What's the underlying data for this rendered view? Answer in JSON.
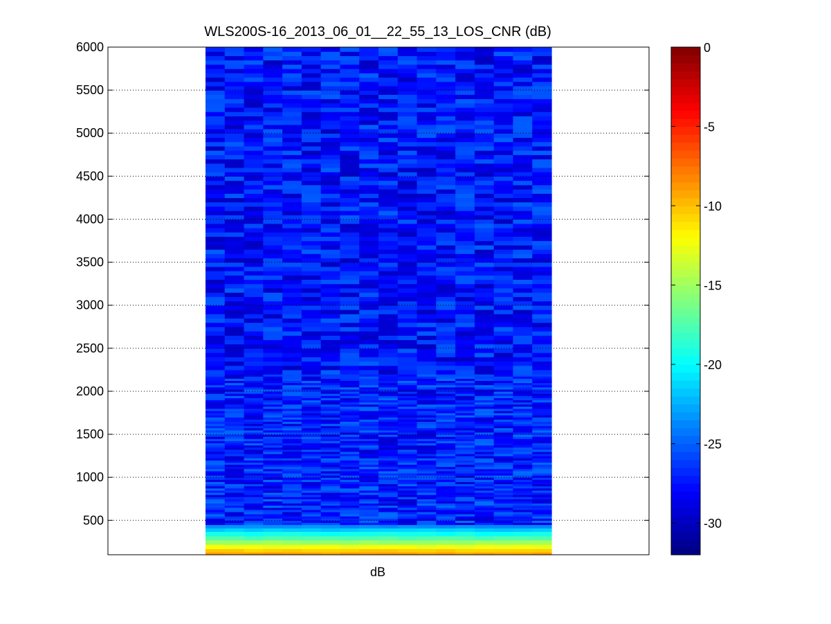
{
  "chart_data": {
    "type": "heatmap",
    "title": "WLS200S-16_2013_06_01__22_55_13_LOS_CNR (dB)",
    "xlabel": "dB",
    "ylabel": "",
    "ylim": [
      100,
      6000
    ],
    "yticks": [
      500,
      1000,
      1500,
      2000,
      2500,
      3000,
      3500,
      4000,
      4500,
      5000,
      5500,
      6000
    ],
    "grid": "y-dotted",
    "colormap": "jet",
    "colorbar": {
      "range": [
        -32,
        0
      ],
      "ticks": [
        0,
        -5,
        -10,
        -15,
        -20,
        -25,
        -30
      ]
    },
    "columns": 18,
    "bands": [
      {
        "y_from": 100,
        "y_to": 130,
        "value": -9
      },
      {
        "y_from": 130,
        "y_to": 170,
        "value": -10.5
      },
      {
        "y_from": 170,
        "y_to": 220,
        "value": -12.5
      },
      {
        "y_from": 220,
        "y_to": 270,
        "value": -15
      },
      {
        "y_from": 270,
        "y_to": 320,
        "value": -17.5
      },
      {
        "y_from": 320,
        "y_to": 370,
        "value": -19.5
      },
      {
        "y_from": 370,
        "y_to": 410,
        "value": -21.5
      },
      {
        "y_from": 410,
        "y_to": 450,
        "value": -23.5
      },
      {
        "y_from": 450,
        "y_to": 2200,
        "value": -27,
        "spread": 2.5
      },
      {
        "y_from": 2200,
        "y_to": 6000,
        "value": -27.5,
        "spread": 2.5
      }
    ],
    "colors": {
      "axis": "#000000",
      "grid": "#000000",
      "background": "#ffffff"
    }
  }
}
